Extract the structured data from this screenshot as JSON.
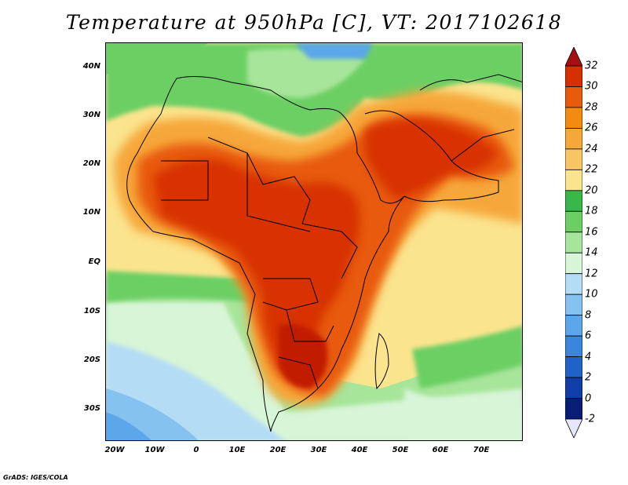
{
  "title": "Temperature at 950hPa [C], VT: 2017102618",
  "credit": "GrADS: IGES/COLA",
  "map": {
    "lat_labels": [
      "40N",
      "30N",
      "20N",
      "10N",
      "EQ",
      "10S",
      "20S",
      "30S"
    ],
    "lon_labels": [
      "20W",
      "10W",
      "0",
      "10E",
      "20E",
      "30E",
      "40E",
      "50E",
      "60E",
      "70E"
    ]
  },
  "legend": {
    "labels": [
      "32",
      "30",
      "28",
      "26",
      "24",
      "22",
      "20",
      "18",
      "16",
      "14",
      "12",
      "10",
      "8",
      "6",
      "4",
      "2",
      "0",
      "-2"
    ],
    "colors_top_to_bottom": [
      "#a50f0f",
      "#d73000",
      "#e85a0c",
      "#f38b10",
      "#f6a73a",
      "#f9c463",
      "#fbe48e",
      "#3ab74a",
      "#6ccf64",
      "#a7e59a",
      "#d7f5d7",
      "#b4dcf5",
      "#86c2f0",
      "#5ca6ea",
      "#3b85dc",
      "#1f62c8",
      "#0f3ea6",
      "#071e74",
      "#e6e6ff"
    ]
  }
}
